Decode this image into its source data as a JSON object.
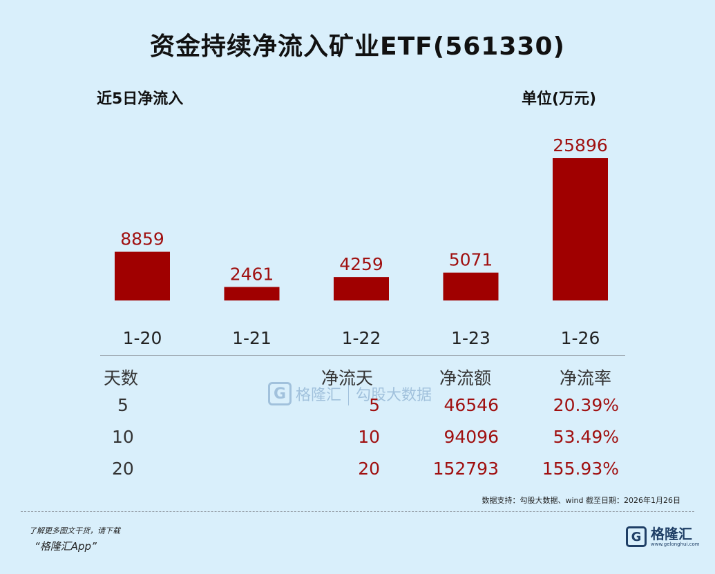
{
  "title": "资金持续净流入矿业ETF(561330)",
  "subtitle_left": "近5日净流入",
  "subtitle_right": "单位(万元)",
  "colors": {
    "bar": "#a00000",
    "value_text": "#a01010",
    "background": "#d9effb"
  },
  "chart_data": {
    "type": "bar",
    "title": "资金持续净流入矿业ETF(561330)",
    "categories": [
      "1-20",
      "1-21",
      "1-22",
      "1-23",
      "1-26"
    ],
    "values": [
      8859,
      2461,
      4259,
      5071,
      25896
    ],
    "ylabel": "单位(万元)",
    "grid": false,
    "legend": "none"
  },
  "table": {
    "headers": [
      "天数",
      "净流天",
      "净流额",
      "净流率"
    ],
    "rows": [
      [
        "5",
        "5",
        "46546",
        "20.39%"
      ],
      [
        "10",
        "10",
        "94096",
        "53.49%"
      ],
      [
        "20",
        "20",
        "152793",
        "155.93%"
      ]
    ]
  },
  "watermark": {
    "logo_letter": "G",
    "brand": "格隆汇",
    "partner": "勾股大数据"
  },
  "source": "数据支持：勾股大数据、wind 截至日期：2026年1月26日",
  "footer": {
    "line1": "了解更多图文干货，请下载",
    "line2": "“格隆汇App”"
  },
  "brand": {
    "logo_letter": "G",
    "name": "格隆汇",
    "url": "www.gelonghui.com"
  }
}
